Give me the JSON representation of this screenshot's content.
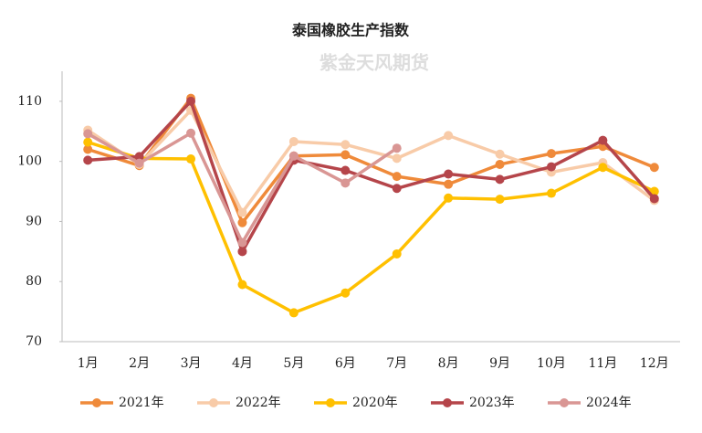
{
  "chart_data": {
    "type": "line",
    "title": "泰国橡胶生产指数",
    "watermark": "紫金天风期货",
    "categories": [
      "1月",
      "2月",
      "3月",
      "4月",
      "5月",
      "6月",
      "7月",
      "8月",
      "9月",
      "10月",
      "11月",
      "12月"
    ],
    "series": [
      {
        "name": "2021年",
        "color": "#ef8a3a",
        "values": [
          102,
          99.3,
          110.5,
          89.8,
          100.9,
          101.1,
          97.5,
          96.2,
          99.5,
          101.3,
          102.5,
          99
        ]
      },
      {
        "name": "2022年",
        "color": "#f8cba8",
        "values": [
          105.2,
          99.5,
          108.5,
          91.5,
          103.3,
          102.8,
          100.5,
          104.3,
          101.2,
          98.2,
          99.8,
          93.5
        ]
      },
      {
        "name": "2020年",
        "color": "#ffc000",
        "values": [
          103.2,
          100.5,
          100.4,
          79.5,
          74.8,
          78.1,
          84.6,
          93.9,
          93.7,
          94.7,
          99,
          95
        ]
      },
      {
        "name": "2023年",
        "color": "#b5454a",
        "values": [
          100.2,
          100.8,
          110,
          85,
          100.2,
          98.5,
          95.5,
          97.9,
          97,
          99.1,
          103.5,
          93.8
        ]
      },
      {
        "name": "2024年",
        "color": "#d99694",
        "values": [
          104.6,
          99.7,
          104.7,
          86.5,
          100.9,
          96.4,
          102.2,
          null,
          null,
          null,
          null,
          null
        ]
      }
    ],
    "ylim": [
      70,
      115
    ],
    "yticks": [
      70,
      80,
      90,
      100,
      110
    ],
    "grid": false
  }
}
